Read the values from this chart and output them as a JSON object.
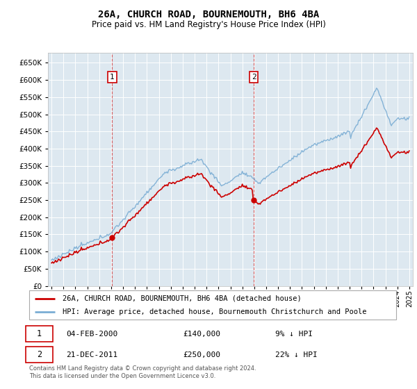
{
  "title": "26A, CHURCH ROAD, BOURNEMOUTH, BH6 4BA",
  "subtitle": "Price paid vs. HM Land Registry's House Price Index (HPI)",
  "legend_line1": "26A, CHURCH ROAD, BOURNEMOUTH, BH6 4BA (detached house)",
  "legend_line2": "HPI: Average price, detached house, Bournemouth Christchurch and Poole",
  "footer": "Contains HM Land Registry data © Crown copyright and database right 2024.\nThis data is licensed under the Open Government Licence v3.0.",
  "annotation1_date": "04-FEB-2000",
  "annotation1_price": "£140,000",
  "annotation1_hpi": "9% ↓ HPI",
  "annotation2_date": "21-DEC-2011",
  "annotation2_price": "£250,000",
  "annotation2_hpi": "22% ↓ HPI",
  "hpi_color": "#7aadd4",
  "price_color": "#cc0000",
  "background_color": "#dde8f0",
  "ylim": [
    0,
    680000
  ],
  "ytick_vals": [
    0,
    50000,
    100000,
    150000,
    200000,
    250000,
    300000,
    350000,
    400000,
    450000,
    500000,
    550000,
    600000,
    650000
  ],
  "xlim_start": 1994.7,
  "xlim_end": 2025.3,
  "sale1_year": 2000.087,
  "sale1_price": 140000,
  "sale2_year": 2011.958,
  "sale2_price": 250000
}
